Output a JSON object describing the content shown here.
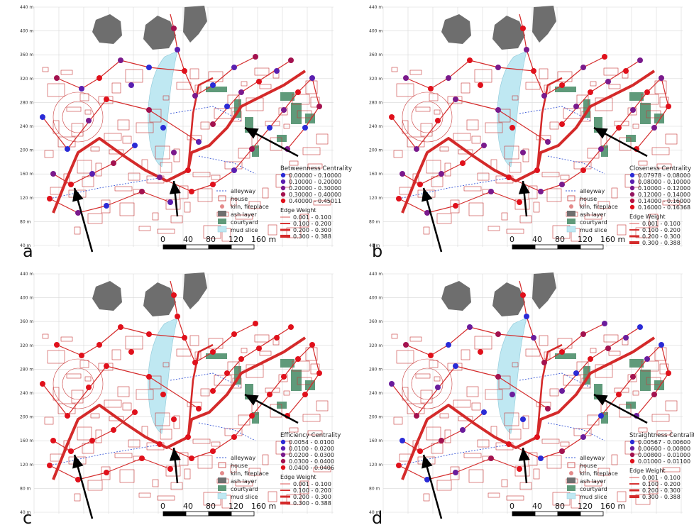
{
  "panels": [
    {
      "label": "a",
      "title": "Betweenness Centrality",
      "classes": [
        "0.00000 - 0.10000",
        "0.10000 - 0.20000",
        "0.20000 - 0.30000",
        "0.30000 - 0.40000",
        "0.40000 - 0.45011"
      ]
    },
    {
      "label": "b",
      "title": "Closeness Centrality",
      "classes": [
        "0.07978 - 0.08000",
        "0.08000 - 0.10000",
        "0.10000 - 0.12000",
        "0.12000 - 0.14000",
        "0.14000 - 0.16000",
        "0.16000 - 0.16368"
      ]
    },
    {
      "label": "c",
      "title": "Efficiency Centrality",
      "classes": [
        "0.0054 - 0.0100",
        "0.0100 - 0.0200",
        "0.0200 - 0.0300",
        "0.0300 - 0.0400",
        "0.0400 - 0.0406"
      ]
    },
    {
      "label": "d",
      "title": "Straightness Centrality",
      "classes": [
        "0.00567 - 0.00600",
        "0.00600 - 0.00800",
        "0.00800 - 0.01000",
        "0.01000 - 0.01100"
      ]
    }
  ],
  "legend": {
    "alleyway": "alleyway",
    "house": "house",
    "kiln": "kiln, fireplace",
    "ash": "ash layer",
    "courtyard": "courtyard",
    "mud": "mud slice",
    "edge_title": "Edge Weight",
    "edges": [
      "0.001 - 0.100",
      "0.100 - 0.200",
      "0.200 - 0.300",
      "0.300 - 0.388"
    ]
  },
  "scale_labels": [
    "0",
    "40",
    "80",
    "120",
    "160 m"
  ],
  "y_ticks": [
    "440 m",
    "400 m",
    "360 m",
    "320 m",
    "280 m",
    "240 m",
    "200 m",
    "160 m",
    "120 m",
    "80 m",
    "40 m"
  ],
  "colors": {
    "class_ramp_5": [
      "#2b2bd6",
      "#5a1fb0",
      "#7a1a8c",
      "#a3124f",
      "#e0101b"
    ],
    "class_ramp_6": [
      "#2b2bd6",
      "#5a1fb0",
      "#7a1a8c",
      "#93155f",
      "#b80f3f",
      "#e0101b"
    ],
    "class_ramp_4": [
      "#2b2bd6",
      "#6a1c9c",
      "#a3124f",
      "#e0101b"
    ],
    "edge": "#d42a2a",
    "house": "#c83737",
    "ash": "#6e6e6e",
    "courtyard": "#5f9a7a",
    "mud": "#bfe8f2",
    "alley": "#3a58d6"
  }
}
